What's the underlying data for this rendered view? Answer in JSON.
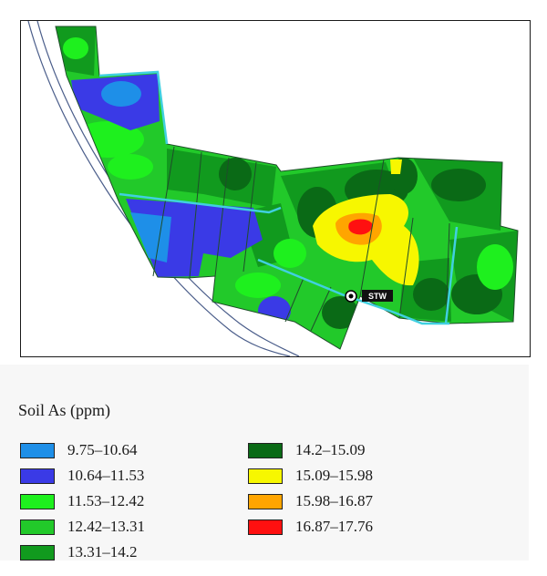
{
  "map": {
    "station_label": "STW",
    "colors": {
      "road": "#4a5d8a",
      "field_boundary": "#1f4d2a",
      "survey_line": "#40d0e0"
    }
  },
  "legend": {
    "title": "Soil As (ppm)",
    "classes": [
      {
        "label": "9.75–10.64",
        "color": "#1e8fe8"
      },
      {
        "label": "10.64–11.53",
        "color": "#3a3ae6"
      },
      {
        "label": "11.53–12.42",
        "color": "#1ef01e"
      },
      {
        "label": "12.42–13.31",
        "color": "#22c92a"
      },
      {
        "label": "13.31–14.2",
        "color": "#119a1e"
      },
      {
        "label": "14.2–15.09",
        "color": "#0a6a16"
      },
      {
        "label": "15.09–15.98",
        "color": "#f7f700"
      },
      {
        "label": "15.98–16.87",
        "color": "#ffa500"
      },
      {
        "label": "16.87–17.76",
        "color": "#ff1010"
      }
    ]
  }
}
